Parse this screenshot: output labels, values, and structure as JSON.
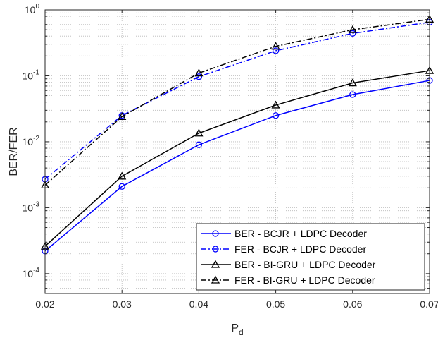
{
  "chart_data": {
    "type": "line",
    "xlabel": "P",
    "xlabel_sub": "d",
    "ylabel": "BER/FER",
    "xlim": [
      0.02,
      0.07
    ],
    "ylim": [
      5e-05,
      1
    ],
    "y_scale": "log",
    "grid": "major and minor, dotted",
    "legend_position": "bottom-right",
    "x_ticks": [
      "0.02",
      "0.03",
      "0.04",
      "0.05",
      "0.06",
      "0.07"
    ],
    "y_ticks": [
      {
        "base": "10",
        "exp": "0"
      },
      {
        "base": "10",
        "exp": "-1"
      },
      {
        "base": "10",
        "exp": "-2"
      },
      {
        "base": "10",
        "exp": "-3"
      },
      {
        "base": "10",
        "exp": "-4"
      }
    ],
    "x": [
      0.02,
      0.03,
      0.04,
      0.05,
      0.06,
      0.07
    ],
    "series": [
      {
        "name": "BER - BCJR + LDPC Decoder",
        "values": [
          0.00022,
          0.0021,
          0.009,
          0.025,
          0.052,
          0.085
        ],
        "color": "#0000ff",
        "line": "solid",
        "marker": "circle"
      },
      {
        "name": "FER - BCJR + LDPC Decoder",
        "values": [
          0.0027,
          0.025,
          0.097,
          0.24,
          0.44,
          0.65
        ],
        "color": "#0000ff",
        "line": "dashdot",
        "marker": "circle"
      },
      {
        "name": "BER - BI-GRU + LDPC Decoder",
        "values": [
          0.00026,
          0.003,
          0.0135,
          0.036,
          0.078,
          0.12
        ],
        "color": "#000000",
        "line": "solid",
        "marker": "triangle"
      },
      {
        "name": "FER - BI-GRU + LDPC Decoder",
        "values": [
          0.0022,
          0.024,
          0.11,
          0.28,
          0.5,
          0.72
        ],
        "color": "#000000",
        "line": "dashdot",
        "marker": "triangle"
      }
    ]
  }
}
